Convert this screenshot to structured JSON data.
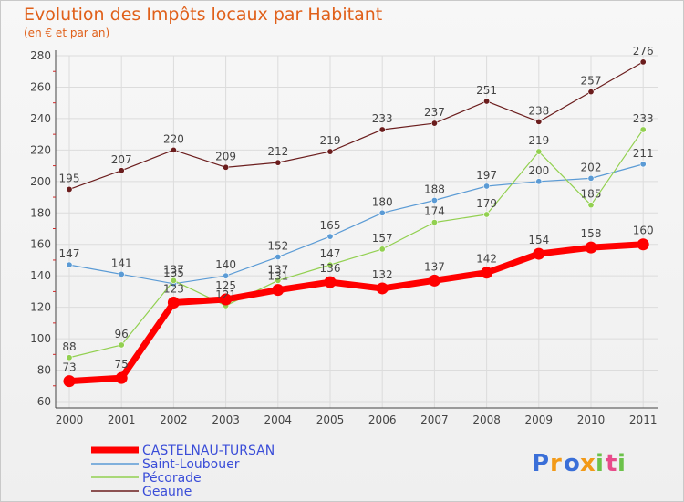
{
  "chart_data": {
    "type": "line",
    "title": "Evolution des Impôts locaux par Habitant",
    "subtitle": "(en € et par an)",
    "xlabel": "",
    "ylabel": "",
    "ylim": [
      60,
      280
    ],
    "yticks": [
      60,
      80,
      100,
      120,
      140,
      160,
      180,
      200,
      220,
      240,
      260,
      280
    ],
    "grid": true,
    "legend_position": "bottom-left",
    "categories": [
      "2000",
      "2001",
      "2002",
      "2003",
      "2004",
      "2005",
      "2006",
      "2007",
      "2008",
      "2009",
      "2010",
      "2011"
    ],
    "series": [
      {
        "name": "Geaune",
        "color": "#6b1d1d",
        "style": "thin",
        "values": [
          195,
          207,
          220,
          209,
          212,
          219,
          233,
          237,
          251,
          238,
          257,
          276
        ]
      },
      {
        "name": "Saint-Loubouer",
        "color": "#5b9bd5",
        "style": "thin",
        "values": [
          147,
          141,
          135,
          140,
          152,
          165,
          180,
          188,
          197,
          200,
          202,
          211
        ]
      },
      {
        "name": "Pécorade",
        "color": "#92d050",
        "style": "thin",
        "values": [
          88,
          96,
          137,
          121,
          137,
          147,
          157,
          174,
          179,
          219,
          185,
          233
        ]
      },
      {
        "name": "CASTELNAU-TURSAN",
        "color": "#ff0000",
        "style": "thick",
        "values": [
          73,
          75,
          123,
          125,
          131,
          136,
          132,
          137,
          142,
          154,
          158,
          160
        ]
      }
    ],
    "legend_order": [
      "CASTELNAU-TURSAN",
      "Saint-Loubouer",
      "Pécorade",
      "Geaune"
    ]
  },
  "branding": {
    "logo_text": "Proxiti",
    "logo_colors": [
      "#3a6fd8",
      "#f29a18",
      "#3a6fd8",
      "#f29a18",
      "#6cc24a",
      "#e84b8a",
      "#6cc24a"
    ]
  },
  "colors": {
    "title": "#e0601a",
    "axis": "#444444",
    "grid": "#dcdcdc",
    "legend_text": "#3a4dd8",
    "label": "#444444"
  }
}
